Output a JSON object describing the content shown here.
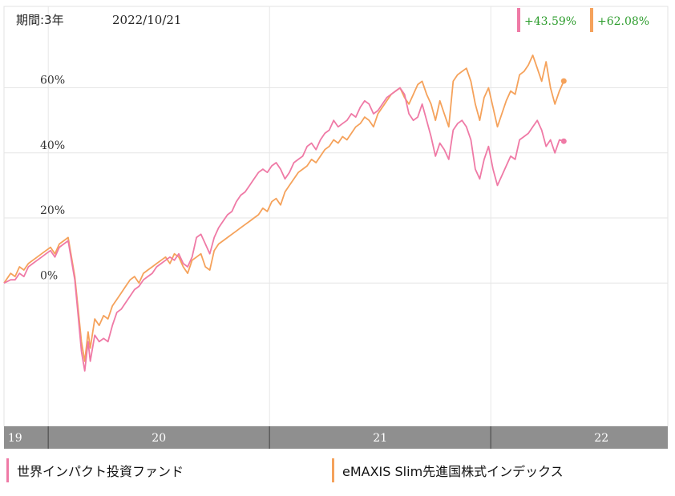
{
  "period_label": "期間:3年",
  "date_label": "2022/10/21",
  "badges": [
    {
      "text": "+43.59%",
      "color": "#ef7aa6"
    },
    {
      "text": "+62.08%",
      "color": "#f5a25b"
    }
  ],
  "chart_data": {
    "type": "line",
    "title": "",
    "xlabel": "",
    "ylabel": "",
    "x_axis": {
      "range": [
        2019.8,
        2022.8
      ],
      "tick_labels": [
        {
          "label": "19",
          "at": 2019.85
        },
        {
          "label": "20",
          "at": 2020.5
        },
        {
          "label": "21",
          "at": 2021.5
        },
        {
          "label": "22",
          "at": 2022.5
        }
      ],
      "dividers": [
        2020.0,
        2021.0,
        2022.0
      ]
    },
    "y_axis": {
      "range": [
        -44,
        85
      ],
      "ticks": [
        0,
        20,
        40,
        60
      ],
      "tick_labels": [
        "0%",
        "20%",
        "40%",
        "60%"
      ],
      "grid": true
    },
    "series": [
      {
        "name": "世界インパクト投資ファンド",
        "color": "#ef7aa6",
        "end_value": 43.59,
        "points": [
          [
            2019.8,
            0
          ],
          [
            2019.83,
            1
          ],
          [
            2019.85,
            1
          ],
          [
            2019.87,
            3
          ],
          [
            2019.89,
            2
          ],
          [
            2019.91,
            5
          ],
          [
            2019.93,
            6
          ],
          [
            2019.95,
            7
          ],
          [
            2019.97,
            8
          ],
          [
            2019.99,
            9
          ],
          [
            2020.01,
            10
          ],
          [
            2020.03,
            8
          ],
          [
            2020.05,
            11
          ],
          [
            2020.07,
            12
          ],
          [
            2020.09,
            13
          ],
          [
            2020.12,
            1
          ],
          [
            2020.135,
            -10
          ],
          [
            2020.15,
            -21
          ],
          [
            2020.165,
            -27
          ],
          [
            2020.18,
            -18
          ],
          [
            2020.19,
            -24
          ],
          [
            2020.21,
            -16
          ],
          [
            2020.23,
            -18
          ],
          [
            2020.25,
            -17
          ],
          [
            2020.27,
            -18
          ],
          [
            2020.29,
            -13
          ],
          [
            2020.31,
            -9
          ],
          [
            2020.33,
            -8
          ],
          [
            2020.35,
            -6
          ],
          [
            2020.37,
            -4
          ],
          [
            2020.39,
            -2
          ],
          [
            2020.41,
            -1
          ],
          [
            2020.43,
            1
          ],
          [
            2020.45,
            2
          ],
          [
            2020.47,
            3
          ],
          [
            2020.49,
            5
          ],
          [
            2020.51,
            6
          ],
          [
            2020.53,
            7
          ],
          [
            2020.55,
            8
          ],
          [
            2020.57,
            7
          ],
          [
            2020.59,
            9
          ],
          [
            2020.61,
            6
          ],
          [
            2020.63,
            5
          ],
          [
            2020.65,
            8
          ],
          [
            2020.67,
            14
          ],
          [
            2020.69,
            15
          ],
          [
            2020.71,
            12
          ],
          [
            2020.73,
            9
          ],
          [
            2020.75,
            14
          ],
          [
            2020.77,
            17
          ],
          [
            2020.79,
            19
          ],
          [
            2020.81,
            21
          ],
          [
            2020.83,
            22
          ],
          [
            2020.85,
            25
          ],
          [
            2020.87,
            27
          ],
          [
            2020.89,
            28
          ],
          [
            2020.91,
            30
          ],
          [
            2020.93,
            32
          ],
          [
            2020.95,
            34
          ],
          [
            2020.97,
            35
          ],
          [
            2020.99,
            34
          ],
          [
            2021.01,
            36
          ],
          [
            2021.03,
            37
          ],
          [
            2021.05,
            35
          ],
          [
            2021.07,
            32
          ],
          [
            2021.09,
            34
          ],
          [
            2021.11,
            37
          ],
          [
            2021.13,
            38
          ],
          [
            2021.15,
            39
          ],
          [
            2021.17,
            42
          ],
          [
            2021.19,
            43
          ],
          [
            2021.21,
            41
          ],
          [
            2021.23,
            44
          ],
          [
            2021.25,
            46
          ],
          [
            2021.27,
            47
          ],
          [
            2021.29,
            50
          ],
          [
            2021.31,
            48
          ],
          [
            2021.33,
            49
          ],
          [
            2021.35,
            50
          ],
          [
            2021.37,
            52
          ],
          [
            2021.39,
            51
          ],
          [
            2021.41,
            54
          ],
          [
            2021.43,
            56
          ],
          [
            2021.45,
            55
          ],
          [
            2021.47,
            52
          ],
          [
            2021.49,
            53
          ],
          [
            2021.51,
            55
          ],
          [
            2021.53,
            57
          ],
          [
            2021.55,
            58
          ],
          [
            2021.57,
            59
          ],
          [
            2021.59,
            60
          ],
          [
            2021.61,
            58
          ],
          [
            2021.63,
            52
          ],
          [
            2021.65,
            50
          ],
          [
            2021.67,
            51
          ],
          [
            2021.69,
            55
          ],
          [
            2021.71,
            50
          ],
          [
            2021.73,
            45
          ],
          [
            2021.75,
            39
          ],
          [
            2021.77,
            43
          ],
          [
            2021.79,
            41
          ],
          [
            2021.81,
            38
          ],
          [
            2021.83,
            47
          ],
          [
            2021.85,
            49
          ],
          [
            2021.87,
            50
          ],
          [
            2021.89,
            48
          ],
          [
            2021.91,
            44
          ],
          [
            2021.93,
            35
          ],
          [
            2021.95,
            32
          ],
          [
            2021.97,
            38
          ],
          [
            2021.99,
            42
          ],
          [
            2022.01,
            35
          ],
          [
            2022.03,
            30
          ],
          [
            2022.05,
            33
          ],
          [
            2022.07,
            36
          ],
          [
            2022.09,
            39
          ],
          [
            2022.11,
            38
          ],
          [
            2022.13,
            44
          ],
          [
            2022.15,
            45
          ],
          [
            2022.17,
            46
          ],
          [
            2022.19,
            48
          ],
          [
            2022.21,
            50
          ],
          [
            2022.23,
            47
          ],
          [
            2022.25,
            42
          ],
          [
            2022.27,
            44
          ],
          [
            2022.29,
            40
          ],
          [
            2022.31,
            44
          ],
          [
            2022.33,
            43.59
          ]
        ]
      },
      {
        "name": "eMAXIS Slim先進国株式インデックス",
        "color": "#f5a25b",
        "end_value": 62.08,
        "points": [
          [
            2019.8,
            0
          ],
          [
            2019.83,
            3
          ],
          [
            2019.85,
            2
          ],
          [
            2019.87,
            5
          ],
          [
            2019.89,
            4
          ],
          [
            2019.91,
            6
          ],
          [
            2019.93,
            7
          ],
          [
            2019.95,
            8
          ],
          [
            2019.97,
            9
          ],
          [
            2019.99,
            10
          ],
          [
            2020.01,
            11
          ],
          [
            2020.03,
            9
          ],
          [
            2020.05,
            12
          ],
          [
            2020.07,
            13
          ],
          [
            2020.09,
            14
          ],
          [
            2020.12,
            2
          ],
          [
            2020.135,
            -8
          ],
          [
            2020.15,
            -18
          ],
          [
            2020.165,
            -24
          ],
          [
            2020.18,
            -15
          ],
          [
            2020.19,
            -20
          ],
          [
            2020.21,
            -11
          ],
          [
            2020.23,
            -13
          ],
          [
            2020.25,
            -10
          ],
          [
            2020.27,
            -11
          ],
          [
            2020.29,
            -7
          ],
          [
            2020.31,
            -5
          ],
          [
            2020.33,
            -3
          ],
          [
            2020.35,
            -1
          ],
          [
            2020.37,
            1
          ],
          [
            2020.39,
            2
          ],
          [
            2020.41,
            0
          ],
          [
            2020.43,
            3
          ],
          [
            2020.45,
            4
          ],
          [
            2020.47,
            5
          ],
          [
            2020.49,
            6
          ],
          [
            2020.51,
            7
          ],
          [
            2020.53,
            8
          ],
          [
            2020.55,
            6
          ],
          [
            2020.57,
            9
          ],
          [
            2020.59,
            8
          ],
          [
            2020.61,
            5
          ],
          [
            2020.63,
            3
          ],
          [
            2020.65,
            7
          ],
          [
            2020.67,
            8
          ],
          [
            2020.69,
            9
          ],
          [
            2020.71,
            5
          ],
          [
            2020.73,
            4
          ],
          [
            2020.75,
            10
          ],
          [
            2020.77,
            12
          ],
          [
            2020.79,
            13
          ],
          [
            2020.81,
            14
          ],
          [
            2020.83,
            15
          ],
          [
            2020.85,
            16
          ],
          [
            2020.87,
            17
          ],
          [
            2020.89,
            18
          ],
          [
            2020.91,
            19
          ],
          [
            2020.93,
            20
          ],
          [
            2020.95,
            21
          ],
          [
            2020.97,
            23
          ],
          [
            2020.99,
            22
          ],
          [
            2021.01,
            25
          ],
          [
            2021.03,
            26
          ],
          [
            2021.05,
            24
          ],
          [
            2021.07,
            28
          ],
          [
            2021.09,
            30
          ],
          [
            2021.11,
            32
          ],
          [
            2021.13,
            34
          ],
          [
            2021.15,
            35
          ],
          [
            2021.17,
            36
          ],
          [
            2021.19,
            38
          ],
          [
            2021.21,
            37
          ],
          [
            2021.23,
            39
          ],
          [
            2021.25,
            41
          ],
          [
            2021.27,
            42
          ],
          [
            2021.29,
            44
          ],
          [
            2021.31,
            43
          ],
          [
            2021.33,
            45
          ],
          [
            2021.35,
            44
          ],
          [
            2021.37,
            46
          ],
          [
            2021.39,
            48
          ],
          [
            2021.41,
            49
          ],
          [
            2021.43,
            51
          ],
          [
            2021.45,
            50
          ],
          [
            2021.47,
            48
          ],
          [
            2021.49,
            52
          ],
          [
            2021.51,
            54
          ],
          [
            2021.53,
            56
          ],
          [
            2021.55,
            58
          ],
          [
            2021.57,
            59
          ],
          [
            2021.59,
            60
          ],
          [
            2021.61,
            57
          ],
          [
            2021.63,
            55
          ],
          [
            2021.65,
            58
          ],
          [
            2021.67,
            61
          ],
          [
            2021.69,
            62
          ],
          [
            2021.71,
            58
          ],
          [
            2021.73,
            55
          ],
          [
            2021.75,
            50
          ],
          [
            2021.77,
            56
          ],
          [
            2021.79,
            52
          ],
          [
            2021.81,
            48
          ],
          [
            2021.83,
            62
          ],
          [
            2021.85,
            64
          ],
          [
            2021.87,
            65
          ],
          [
            2021.89,
            66
          ],
          [
            2021.91,
            62
          ],
          [
            2021.93,
            55
          ],
          [
            2021.95,
            50
          ],
          [
            2021.97,
            57
          ],
          [
            2021.99,
            60
          ],
          [
            2022.01,
            54
          ],
          [
            2022.03,
            48
          ],
          [
            2022.05,
            52
          ],
          [
            2022.07,
            56
          ],
          [
            2022.09,
            59
          ],
          [
            2022.11,
            58
          ],
          [
            2022.13,
            64
          ],
          [
            2022.15,
            65
          ],
          [
            2022.17,
            67
          ],
          [
            2022.19,
            70
          ],
          [
            2022.21,
            66
          ],
          [
            2022.23,
            62
          ],
          [
            2022.25,
            68
          ],
          [
            2022.27,
            60
          ],
          [
            2022.29,
            55
          ],
          [
            2022.31,
            59
          ],
          [
            2022.33,
            62.08
          ]
        ]
      }
    ]
  }
}
